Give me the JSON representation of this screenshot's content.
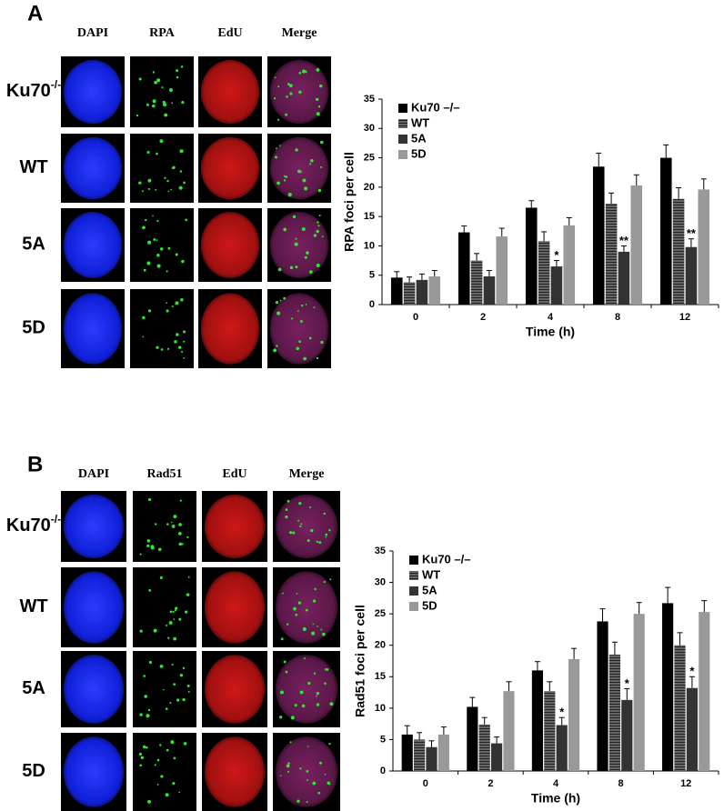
{
  "panels": [
    {
      "label": "A",
      "columns": [
        "DAPI",
        "RPA",
        "EdU",
        "Merge"
      ],
      "rows": [
        {
          "name": "Ku70",
          "superscript": "-/-"
        },
        {
          "name": "WT"
        },
        {
          "name": "5A"
        },
        {
          "name": "5D"
        }
      ]
    },
    {
      "label": "B",
      "columns": [
        "DAPI",
        "Rad51",
        "EdU",
        "Merge"
      ],
      "rows": [
        {
          "name": "Ku70",
          "superscript": "-/-"
        },
        {
          "name": "WT"
        },
        {
          "name": "5A"
        },
        {
          "name": "5D"
        }
      ]
    }
  ],
  "chart_data": [
    {
      "type": "bar",
      "ylabel": "RPA foci per cell",
      "xlabel": "Time (h)",
      "categories": [
        "0",
        "2",
        "4",
        "8",
        "12"
      ],
      "legend": "upper left",
      "ylim": [
        0,
        35
      ],
      "yticks": [
        0,
        5,
        10,
        15,
        20,
        25,
        30,
        35
      ],
      "series": [
        {
          "name": "Ku70 –/–",
          "color": "#000000",
          "values": [
            4.6,
            12.3,
            16.5,
            23.5,
            25
          ],
          "errors": [
            1,
            1.1,
            1.2,
            2.3,
            2.2
          ]
        },
        {
          "name": "WT",
          "color": "#555555",
          "hatch": true,
          "values": [
            3.8,
            7.5,
            10.8,
            17.2,
            18
          ],
          "errors": [
            0.9,
            1.2,
            1.6,
            1.8,
            1.9
          ]
        },
        {
          "name": "5A",
          "color": "#333333",
          "values": [
            4.2,
            4.8,
            6.5,
            9,
            9.8
          ],
          "errors": [
            1,
            1,
            1,
            1,
            1.4
          ],
          "labels": [
            null,
            null,
            "*",
            "**",
            "**"
          ]
        },
        {
          "name": "5D",
          "color": "#999999",
          "values": [
            4.8,
            11.6,
            13.5,
            20.3,
            19.6
          ],
          "errors": [
            1,
            1.4,
            1.3,
            1.8,
            1.8
          ]
        }
      ]
    },
    {
      "type": "bar",
      "ylabel": "Rad51 foci per cell",
      "xlabel": "Time (h)",
      "categories": [
        "0",
        "2",
        "4",
        "8",
        "12"
      ],
      "legend": "upper left",
      "ylim": [
        0,
        35
      ],
      "yticks": [
        0,
        5,
        10,
        15,
        20,
        25,
        30,
        35
      ],
      "series": [
        {
          "name": "Ku70 –/–",
          "color": "#000000",
          "values": [
            5.8,
            10.2,
            16,
            23.8,
            26.7
          ],
          "errors": [
            1.4,
            1.5,
            1.4,
            2,
            2.5
          ]
        },
        {
          "name": "WT",
          "color": "#555555",
          "hatch": true,
          "values": [
            5,
            7.4,
            12.7,
            18.5,
            20
          ],
          "errors": [
            1.1,
            1.1,
            1.5,
            2,
            2
          ]
        },
        {
          "name": "5A",
          "color": "#333333",
          "values": [
            3.8,
            4.4,
            7.3,
            11.3,
            13.2
          ],
          "errors": [
            1,
            1,
            1.2,
            1.8,
            1.8
          ],
          "labels": [
            null,
            null,
            "*",
            "*",
            "*"
          ]
        },
        {
          "name": "5D",
          "color": "#999999",
          "values": [
            5.8,
            12.7,
            17.8,
            25,
            25.3
          ],
          "errors": [
            1.2,
            1.5,
            1.7,
            1.8,
            1.8
          ]
        }
      ]
    }
  ]
}
